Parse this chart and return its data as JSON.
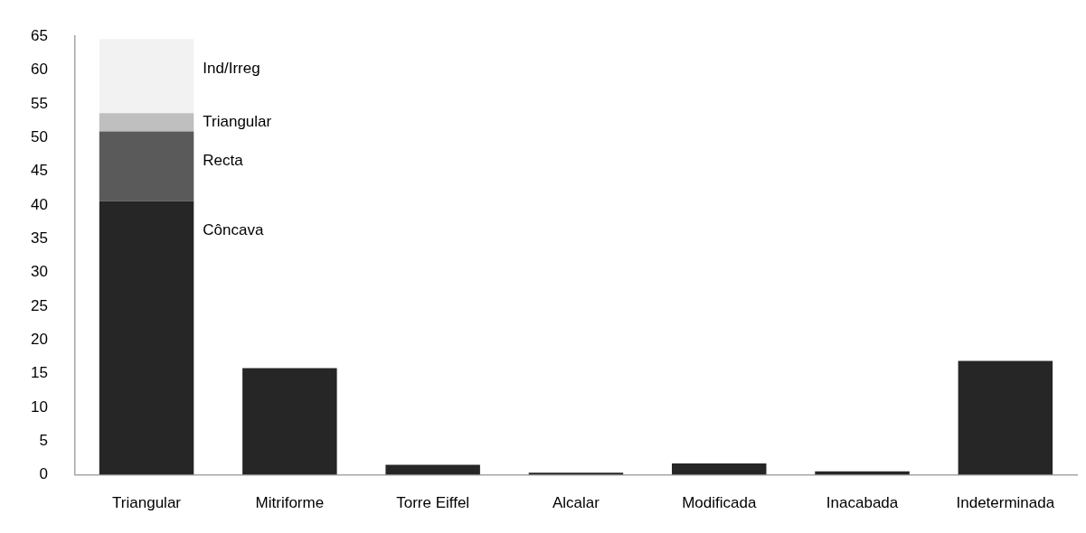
{
  "chart_data": {
    "type": "bar",
    "stacked": true,
    "categories": [
      "Triangular",
      "Mitriforme",
      "Torre Eiffel",
      "Alcalar",
      "Modificada",
      "Inacabada",
      "Indeterminada"
    ],
    "series": [
      {
        "color": "#262626",
        "values": [
          null,
          15.8,
          1.5,
          0.3,
          1.7,
          0.5,
          16.9
        ]
      },
      {
        "name": "Côncava",
        "color": "#262626",
        "values": [
          40.6,
          null,
          null,
          null,
          null,
          null,
          null
        ]
      },
      {
        "name": "Recta",
        "color": "#5a5a5a",
        "values": [
          10.3,
          null,
          null,
          null,
          null,
          null,
          null
        ]
      },
      {
        "name": "Triangular",
        "color": "#bfbfbf",
        "values": [
          2.7,
          null,
          null,
          null,
          null,
          null,
          null
        ]
      },
      {
        "name": "Ind/Irreg",
        "color": "#f2f2f2",
        "values": [
          11.0,
          null,
          null,
          null,
          null,
          null,
          null
        ]
      }
    ],
    "ylim": [
      0,
      65
    ],
    "yticks": [
      0,
      5,
      10,
      15,
      20,
      25,
      30,
      35,
      40,
      45,
      50,
      55,
      60,
      65
    ],
    "grid": false,
    "legend": false
  }
}
